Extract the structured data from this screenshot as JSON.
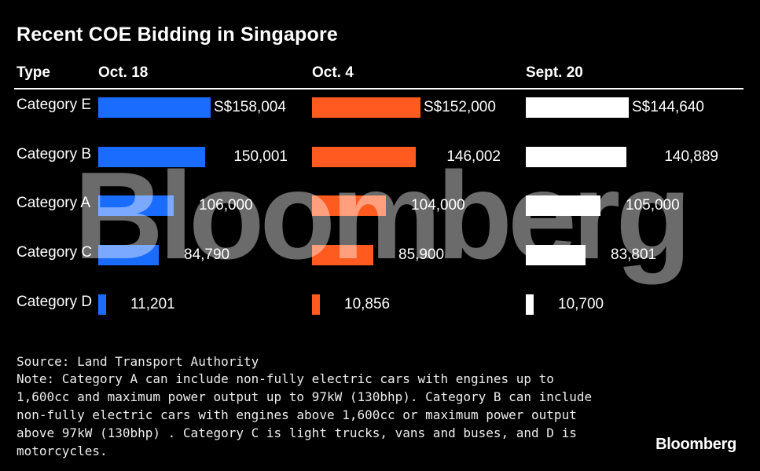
{
  "chart_data": {
    "type": "table",
    "title": "Recent COE Bidding in Singapore",
    "type_header": "Type",
    "columns": [
      "Oct. 18",
      "Oct. 4",
      "Sept. 20"
    ],
    "colors": [
      "#1a6cff",
      "#ff5a1f",
      "#ffffff"
    ],
    "rows": [
      {
        "category": "Category E",
        "values": [
          158004,
          152000,
          144640
        ],
        "labels": [
          "S$158,004",
          "S$152,000",
          "S$144,640"
        ]
      },
      {
        "category": "Category B",
        "values": [
          150001,
          146002,
          140889
        ],
        "labels": [
          "150,001",
          "146,002",
          "140,889"
        ]
      },
      {
        "category": "Category A",
        "values": [
          106000,
          104000,
          105000
        ],
        "labels": [
          "106,000",
          "104,000",
          "105,000"
        ]
      },
      {
        "category": "Category C",
        "values": [
          84790,
          85900,
          83801
        ],
        "labels": [
          "84,790",
          "85,900",
          "83,801"
        ]
      },
      {
        "category": "Category D",
        "values": [
          11201,
          10856,
          10700
        ],
        "labels": [
          "11,201",
          "10,856",
          "10,700"
        ]
      }
    ],
    "max_value": 158004
  },
  "watermark": "Bloomberg",
  "source": "Source: Land Transport Authority",
  "note": "Note: Category A can include non-fully electric cars with engines up to 1,600cc and maximum power output up to 97kW (130bhp). Category B can include non-fully electric cars with engines above 1,600cc or maximum power output above 97kW (130bhp) . Category C is light trucks, vans and buses, and D is motorcycles.",
  "logo": "Bloomberg"
}
